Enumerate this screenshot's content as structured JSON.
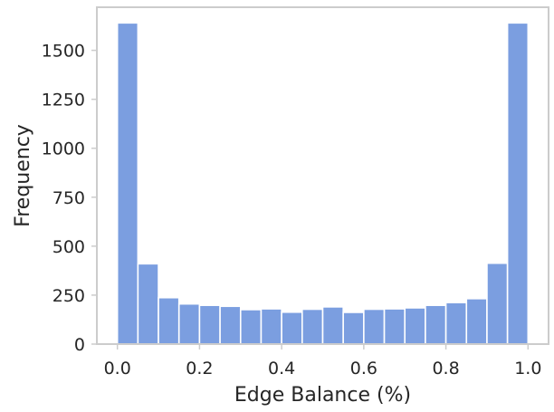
{
  "chart_data": {
    "type": "bar",
    "subtype": "histogram",
    "title": "",
    "xlabel": "Edge Balance (%)",
    "ylabel": "Frequency",
    "xlim": [
      -0.05,
      1.05
    ],
    "ylim": [
      0,
      1720
    ],
    "bins": {
      "start": 0.0,
      "width": 0.05,
      "count": 20
    },
    "values": [
      1640,
      410,
      237,
      205,
      198,
      193,
      176,
      180,
      163,
      178,
      190,
      162,
      178,
      180,
      185,
      198,
      212,
      232,
      413,
      1640
    ],
    "x_ticks": [
      0.0,
      0.2,
      0.4,
      0.6,
      0.8,
      1.0
    ],
    "x_tick_labels": [
      "0.0",
      "0.2",
      "0.4",
      "0.6",
      "0.8",
      "1.0"
    ],
    "y_ticks": [
      0,
      250,
      500,
      750,
      1000,
      1250,
      1500
    ],
    "y_tick_labels": [
      "0",
      "250",
      "500",
      "750",
      "1000",
      "1250",
      "1500"
    ],
    "bar_color": "#7b9ee0",
    "bar_edge_color": "#ffffff",
    "spine_color": "#cccccc",
    "grid": false,
    "legend": "none"
  }
}
